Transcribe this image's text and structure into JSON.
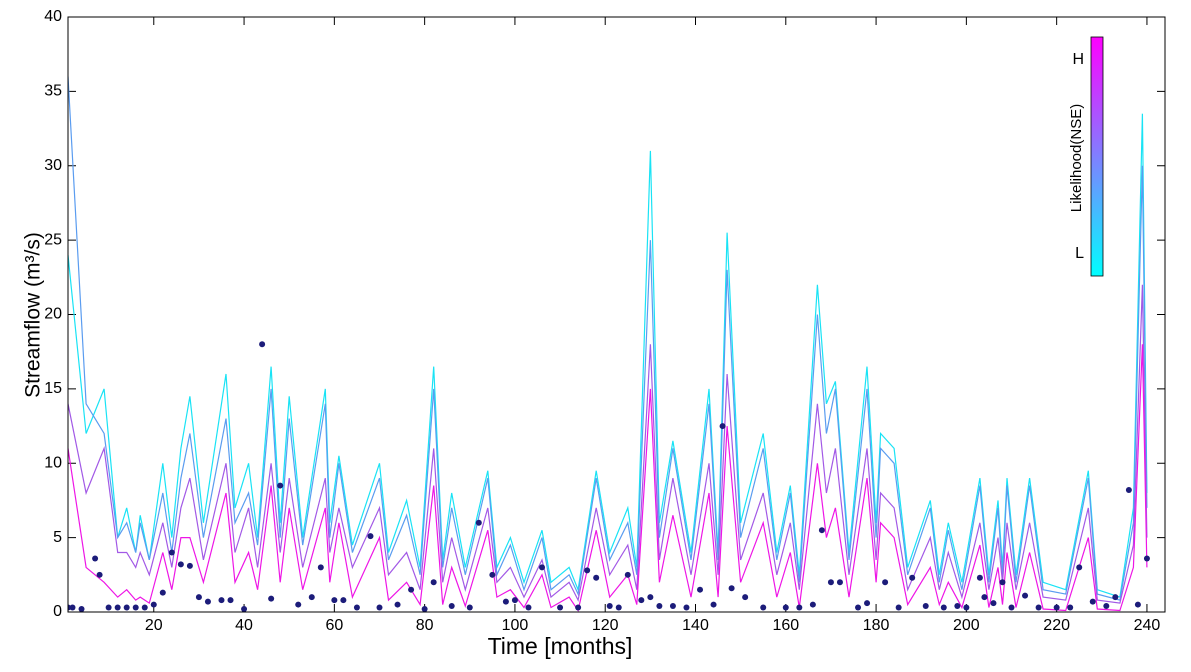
{
  "chart_data": {
    "type": "line",
    "xlabel": "Time [months]",
    "ylabel": "Streamflow (m³/s)",
    "xlim": [
      1,
      244
    ],
    "ylim": [
      0,
      40
    ],
    "xticks": [
      20,
      40,
      60,
      80,
      100,
      120,
      140,
      160,
      180,
      200,
      220,
      240
    ],
    "yticks": [
      0,
      5,
      10,
      15,
      20,
      25,
      30,
      35,
      40
    ],
    "x": [
      1,
      5,
      9,
      12,
      14,
      16,
      17,
      19,
      22,
      24,
      26,
      28,
      31,
      36,
      38,
      41,
      43,
      46,
      48,
      50,
      53,
      58,
      59,
      61,
      64,
      70,
      72,
      76,
      79,
      82,
      84,
      86,
      89,
      94,
      96,
      99,
      102,
      106,
      108,
      112,
      114,
      118,
      121,
      125,
      127,
      130,
      132,
      135,
      139,
      143,
      145,
      147,
      150,
      155,
      158,
      161,
      163,
      167,
      169,
      171,
      174,
      178,
      180,
      181,
      184,
      187,
      192,
      194,
      196,
      199,
      203,
      205,
      207,
      208,
      209,
      211,
      214,
      217,
      222,
      227,
      229,
      234,
      237,
      239,
      240
    ],
    "series": [
      {
        "color": "#19e3f5",
        "values": [
          24,
          12,
          15,
          5,
          7,
          4,
          6.5,
          3.5,
          10,
          5,
          11,
          14.5,
          6,
          16,
          7,
          10,
          5,
          16.5,
          6,
          14.5,
          5,
          15,
          6,
          10.5,
          4.5,
          10,
          4,
          7.5,
          3,
          16.5,
          3.5,
          8,
          3,
          9.5,
          3,
          5,
          2,
          5.5,
          2,
          3,
          1.5,
          9.5,
          4,
          7,
          3,
          31,
          6,
          11.5,
          4,
          15,
          4,
          25.5,
          6,
          12,
          4,
          8.5,
          2.5,
          22,
          14,
          15.5,
          4,
          16.5,
          6,
          12,
          11,
          3,
          7.5,
          2.5,
          6,
          2,
          9,
          2.5,
          7.5,
          3,
          9,
          2.5,
          9,
          2,
          1.5,
          9.5,
          1.5,
          1,
          7,
          33.5,
          8
        ]
      },
      {
        "color": "#5a9cf0",
        "values": [
          36,
          14,
          12,
          5,
          6,
          4,
          6,
          3.5,
          8,
          4,
          9,
          12,
          5,
          13,
          6,
          8,
          4.5,
          15,
          5,
          13,
          4.5,
          14,
          5,
          10,
          4,
          9,
          3.5,
          6.5,
          2.5,
          15,
          3,
          7,
          2.5,
          9,
          2.5,
          4.5,
          1.5,
          5,
          1.5,
          2.5,
          1.2,
          9,
          3.5,
          6,
          2.5,
          25,
          5,
          11,
          3.5,
          14,
          3.5,
          23,
          5,
          11,
          3.5,
          8,
          2,
          20,
          12,
          15,
          3.5,
          15,
          5,
          11,
          10,
          2.5,
          7,
          2,
          5.5,
          1.5,
          8.5,
          2,
          7,
          2.5,
          8.5,
          2,
          8.5,
          1.5,
          1.2,
          9,
          1.2,
          0.8,
          6,
          30,
          7
        ]
      },
      {
        "color": "#a259e6",
        "values": [
          14,
          8,
          11,
          4,
          4,
          3,
          4,
          2.5,
          6,
          3,
          7,
          9,
          3.5,
          10,
          4,
          7,
          3,
          10,
          4,
          9,
          3,
          9,
          4,
          7,
          3,
          7,
          2.5,
          4,
          1.5,
          11,
          2,
          5,
          1.5,
          7,
          2,
          3,
          1,
          3.5,
          1,
          2,
          0.8,
          7,
          2.5,
          4.5,
          1.5,
          18,
          3.5,
          9,
          2.5,
          10,
          2.5,
          16,
          3.5,
          8,
          2.5,
          6,
          1.5,
          14,
          8,
          11,
          2.5,
          11,
          3.5,
          8,
          7,
          1.5,
          5,
          1.5,
          4,
          1,
          6,
          1.5,
          5,
          2,
          6,
          1.5,
          6,
          1,
          0.8,
          7,
          0.8,
          0.6,
          4.5,
          22,
          5
        ]
      },
      {
        "color": "#ee16e6",
        "values": [
          11,
          3,
          2,
          1,
          1.5,
          0.8,
          1,
          0.6,
          4,
          1.5,
          5,
          5,
          2,
          8,
          2,
          4,
          1.5,
          8.5,
          2,
          7,
          1.5,
          7,
          2,
          6,
          1,
          5,
          0.8,
          2,
          0.5,
          8.5,
          0.5,
          3,
          0.4,
          5.5,
          1,
          1.5,
          0.3,
          2.5,
          0.3,
          1,
          0.1,
          5.5,
          1,
          2.5,
          0.5,
          15,
          2,
          6.5,
          1,
          8,
          1,
          12.5,
          2,
          6,
          1,
          4,
          0.3,
          10,
          5,
          7,
          1,
          9,
          2,
          6,
          5,
          0.5,
          3,
          0.5,
          2,
          0.3,
          4.5,
          0.3,
          3,
          0.5,
          4,
          0.3,
          4,
          0.2,
          0.1,
          5,
          0.2,
          0.1,
          3,
          18,
          3
        ]
      }
    ],
    "observed": {
      "color": "#1c1c7a",
      "x": [
        1,
        2,
        4,
        7,
        8,
        10,
        12,
        14,
        16,
        18,
        20,
        22,
        24,
        26,
        28,
        30,
        32,
        35,
        37,
        40,
        44,
        46,
        48,
        52,
        55,
        57,
        60,
        62,
        65,
        68,
        70,
        74,
        77,
        80,
        82,
        86,
        90,
        92,
        95,
        98,
        100,
        103,
        106,
        110,
        114,
        116,
        118,
        121,
        123,
        125,
        128,
        130,
        132,
        135,
        138,
        141,
        144,
        146,
        148,
        151,
        155,
        160,
        163,
        166,
        168,
        170,
        172,
        176,
        178,
        182,
        185,
        188,
        191,
        195,
        198,
        200,
        203,
        204,
        206,
        208,
        210,
        213,
        216,
        220,
        223,
        225,
        228,
        231,
        233,
        236,
        238,
        240
      ],
      "values": [
        0.3,
        0.3,
        0.2,
        3.6,
        2.5,
        0.3,
        0.3,
        0.3,
        0.3,
        0.3,
        0.5,
        1.3,
        4,
        3.2,
        3.1,
        1,
        0.7,
        0.8,
        0.8,
        0.2,
        18,
        0.9,
        8.5,
        0.5,
        1,
        3,
        0.8,
        0.8,
        0.3,
        5.1,
        0.3,
        0.5,
        1.5,
        0.2,
        2,
        0.4,
        0.3,
        6,
        2.5,
        0.7,
        0.8,
        0.3,
        3,
        0.3,
        0.3,
        2.8,
        2.3,
        0.4,
        0.3,
        2.5,
        0.8,
        1,
        0.4,
        0.4,
        0.3,
        1.5,
        0.5,
        12.5,
        1.6,
        1,
        0.3,
        0.3,
        0.3,
        0.5,
        5.5,
        2,
        2,
        0.3,
        0.6,
        2,
        0.3,
        2.3,
        0.4,
        0.3,
        0.4,
        0.3,
        2.3,
        1,
        0.6,
        2,
        0.3,
        1.1,
        0.3,
        0.3,
        0.3,
        3,
        0.7,
        0.4,
        1,
        8.2,
        0.5,
        3.6
      ]
    },
    "colorbar": {
      "label": "Likelihood(NSE)",
      "high": "H",
      "low": "L",
      "colors": [
        "#ff00ff",
        "#00ffff"
      ]
    }
  }
}
